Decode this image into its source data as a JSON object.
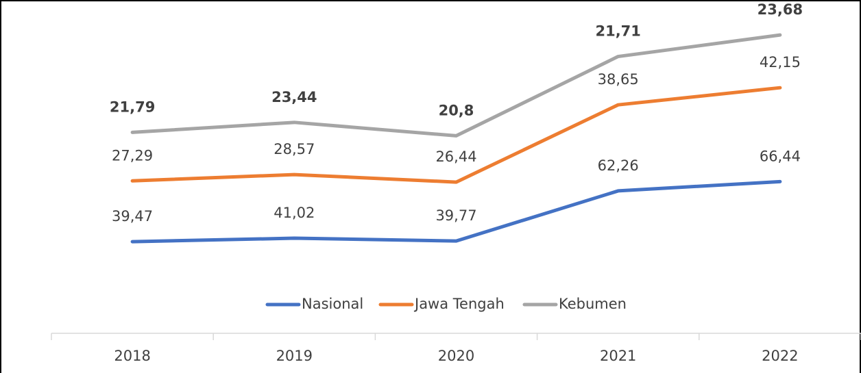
{
  "chart_data": {
    "type": "line",
    "stacked": true,
    "categories": [
      "2018",
      "2019",
      "2020",
      "2021",
      "2022"
    ],
    "series": [
      {
        "name": "Nasional",
        "color": "#4472c4",
        "bold": false,
        "values": [
          39.47,
          41.02,
          39.77,
          62.26,
          66.44
        ],
        "value_labels": [
          "39,47",
          "41,02",
          "39,77",
          "62,26",
          "66,44"
        ]
      },
      {
        "name": "Jawa Tengah",
        "color": "#ed7d31",
        "bold": false,
        "values": [
          27.29,
          28.57,
          26.44,
          38.65,
          42.15
        ],
        "value_labels": [
          "27,29",
          "28,57",
          "26,44",
          "38,65",
          "42,15"
        ]
      },
      {
        "name": "Kebumen",
        "color": "#a5a5a5",
        "bold": true,
        "values": [
          21.79,
          23.44,
          20.8,
          21.71,
          23.68
        ],
        "value_labels": [
          "21,79",
          "23,44",
          "20,8",
          "21,71",
          "23,68"
        ]
      }
    ],
    "ylim": [
      0,
      140
    ],
    "legend": "bottom"
  }
}
